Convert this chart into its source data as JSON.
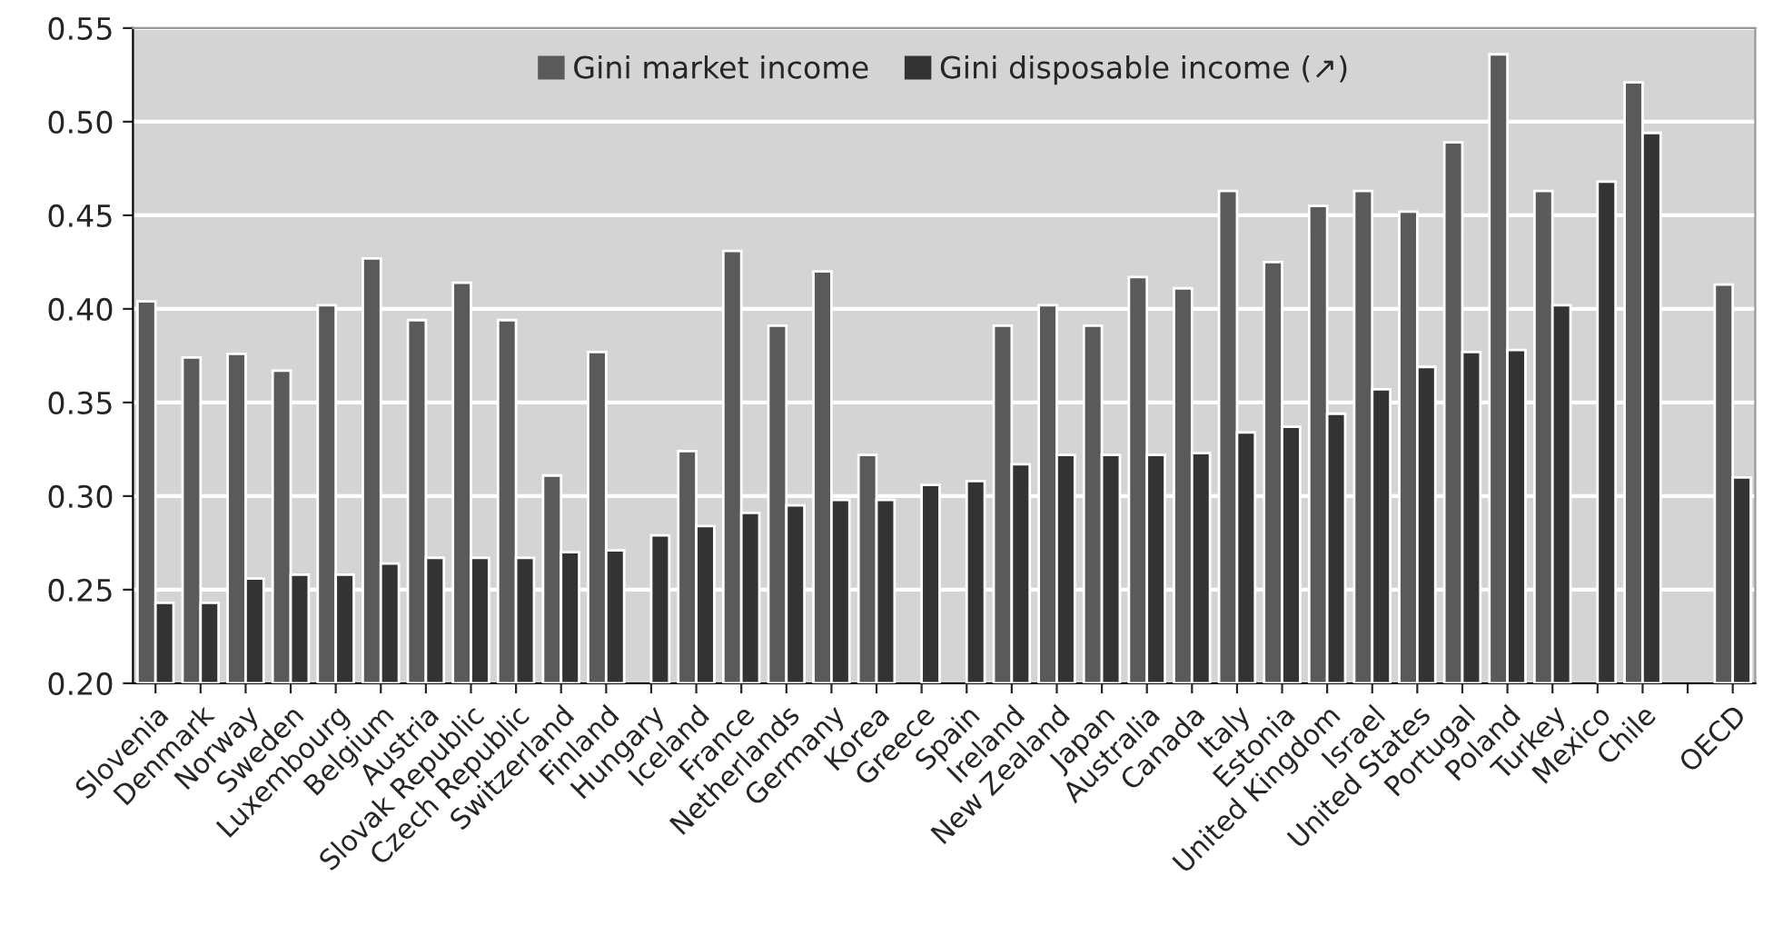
{
  "chart_data": {
    "type": "bar",
    "categories": [
      "Slovenia",
      "Denmark",
      "Norway",
      "Sweden",
      "Luxembourg",
      "Belgium",
      "Austria",
      "Slovak Republic",
      "Czech Republic",
      "Switzerland",
      "Finland",
      "Hungary",
      "Iceland",
      "France",
      "Netherlands",
      "Germany",
      "Korea",
      "Greece",
      "Spain",
      "Ireland",
      "New Zealand",
      "Japan",
      "Australia",
      "Canada",
      "Italy",
      "Estonia",
      "United Kingdom",
      "Israel",
      "United States",
      "Portugal",
      "Poland",
      "Turkey",
      "Mexico",
      "Chile",
      null,
      "OECD"
    ],
    "series": [
      {
        "name": "Gini market income",
        "color": "#5a5a5a",
        "values": [
          0.404,
          0.374,
          0.376,
          0.367,
          0.402,
          0.427,
          0.394,
          0.414,
          0.394,
          0.311,
          0.377,
          null,
          0.324,
          0.431,
          0.391,
          0.42,
          0.322,
          null,
          null,
          0.391,
          0.402,
          0.391,
          0.417,
          0.411,
          0.463,
          0.425,
          0.455,
          0.463,
          0.452,
          0.489,
          0.536,
          0.463,
          null,
          0.521,
          null,
          0.413
        ]
      },
      {
        "name": "Gini disposable income (↗)",
        "color": "#333333",
        "values": [
          0.243,
          0.243,
          0.256,
          0.258,
          0.258,
          0.264,
          0.267,
          0.267,
          0.267,
          0.27,
          0.271,
          0.279,
          0.284,
          0.291,
          0.295,
          0.298,
          0.298,
          0.306,
          0.308,
          0.317,
          0.322,
          0.322,
          0.322,
          0.323,
          0.334,
          0.337,
          0.344,
          0.357,
          0.369,
          0.377,
          0.378,
          0.402,
          0.468,
          0.494,
          null,
          0.31
        ]
      }
    ],
    "ylim": [
      0.2,
      0.55
    ],
    "yticks": [
      {
        "value": 0.2,
        "label": "0.20"
      },
      {
        "value": 0.25,
        "label": "0.25"
      },
      {
        "value": 0.3,
        "label": "0.30"
      },
      {
        "value": 0.35,
        "label": "0.35"
      },
      {
        "value": 0.4,
        "label": "0.40"
      },
      {
        "value": 0.45,
        "label": "0.45"
      },
      {
        "value": 0.5,
        "label": "0.50"
      },
      {
        "value": 0.55,
        "label": "0.55"
      }
    ],
    "grid": "y",
    "legend": "top"
  }
}
